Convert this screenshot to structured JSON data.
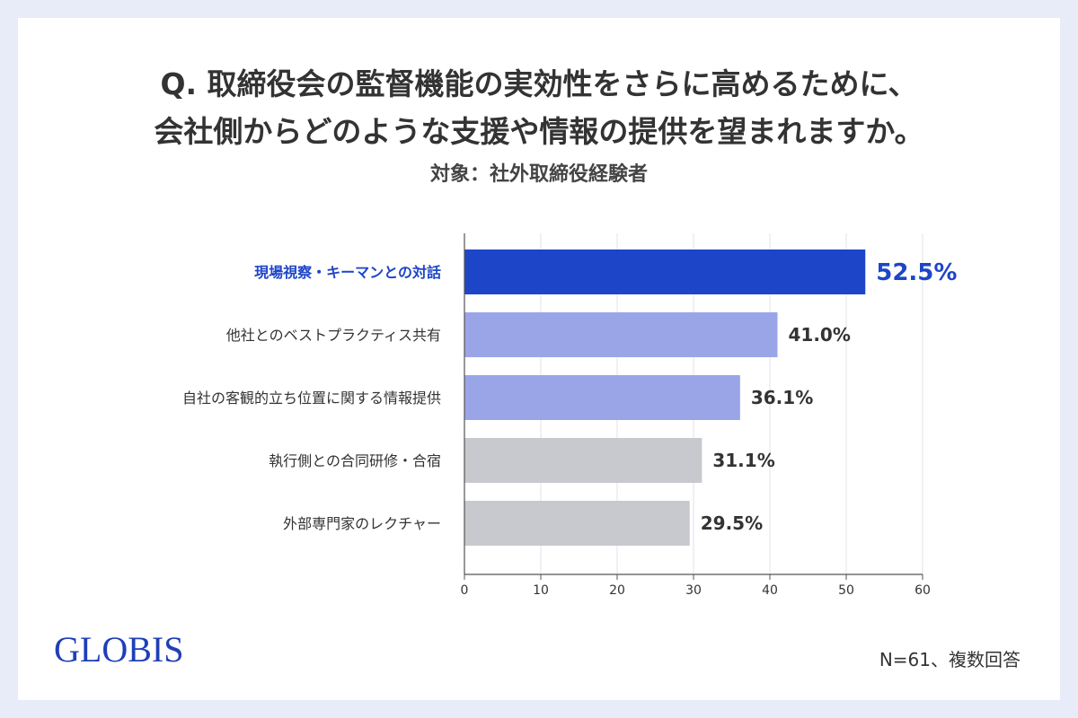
{
  "title_line1": "Q. 取締役会の監督機能の実効性をさらに高めるために、",
  "title_line2": "会社側からどのような支援や情報の提供を望まれますか。",
  "subtitle": "対象：社外取締役経験者",
  "footer": {
    "brand": "GLOBIS",
    "note": "N=61、複数回答"
  },
  "chart_data": {
    "type": "bar",
    "orientation": "horizontal",
    "categories": [
      "現場視察・キーマンとの対話",
      "他社とのベストプラクティス共有",
      "自社の客観的立ち位置に関する情報提供",
      "執行側との合同研修・合宿",
      "外部専門家のレクチャー"
    ],
    "values": [
      52.5,
      41.0,
      36.1,
      31.1,
      29.5
    ],
    "value_labels": [
      "52.5%",
      "41.0%",
      "36.1%",
      "31.1%",
      "29.5%"
    ],
    "bar_colors": [
      "#1d45c8",
      "#9aa5e8",
      "#9aa5e8",
      "#c8c9cf",
      "#c8c9cf"
    ],
    "highlight_index": 0,
    "highlight_color": "#1d45c8",
    "xlim": [
      0,
      60
    ],
    "xticks": [
      0,
      10,
      20,
      30,
      40,
      50,
      60
    ],
    "grid": true
  }
}
